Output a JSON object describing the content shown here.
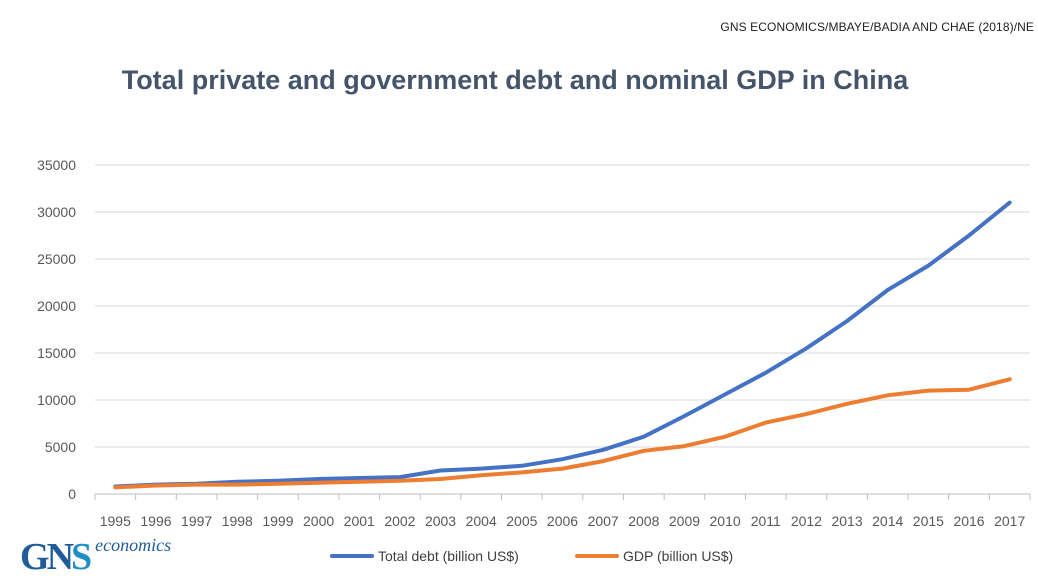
{
  "source_label": "GNS ECONOMICS/MBAYE/BADIA AND CHAE (2018)/NE",
  "logo": {
    "mark_a": "G",
    "mark_b": "N",
    "mark_c": "S",
    "word": "economics"
  },
  "chart_data": {
    "type": "line",
    "title": "Total private and government debt and nominal GDP in China",
    "xlabel": "",
    "ylabel": "",
    "categories": [
      "1995",
      "1996",
      "1997",
      "1998",
      "1999",
      "2000",
      "2001",
      "2002",
      "2003",
      "2004",
      "2005",
      "2006",
      "2007",
      "2008",
      "2009",
      "2010",
      "2011",
      "2012",
      "2013",
      "2014",
      "2015",
      "2016",
      "2017"
    ],
    "yticks": [
      0,
      5000,
      10000,
      15000,
      20000,
      25000,
      30000,
      35000
    ],
    "ylim": [
      0,
      35000
    ],
    "grid": true,
    "legend_position": "bottom",
    "series": [
      {
        "name": "Total debt (billion US$)",
        "color": "#4472c4",
        "values": [
          800,
          1000,
          1100,
          1300,
          1400,
          1600,
          1700,
          1800,
          2500,
          2700,
          3000,
          3700,
          4700,
          6100,
          8300,
          10600,
          12900,
          15500,
          18400,
          21700,
          24300,
          27500,
          31000
        ]
      },
      {
        "name": "GDP (billion US$)",
        "color": "#ed7d31",
        "values": [
          700,
          900,
          1000,
          1000,
          1100,
          1200,
          1300,
          1400,
          1600,
          2000,
          2300,
          2700,
          3500,
          4600,
          5100,
          6100,
          7600,
          8500,
          9600,
          10500,
          11000,
          11100,
          12200
        ]
      }
    ]
  }
}
